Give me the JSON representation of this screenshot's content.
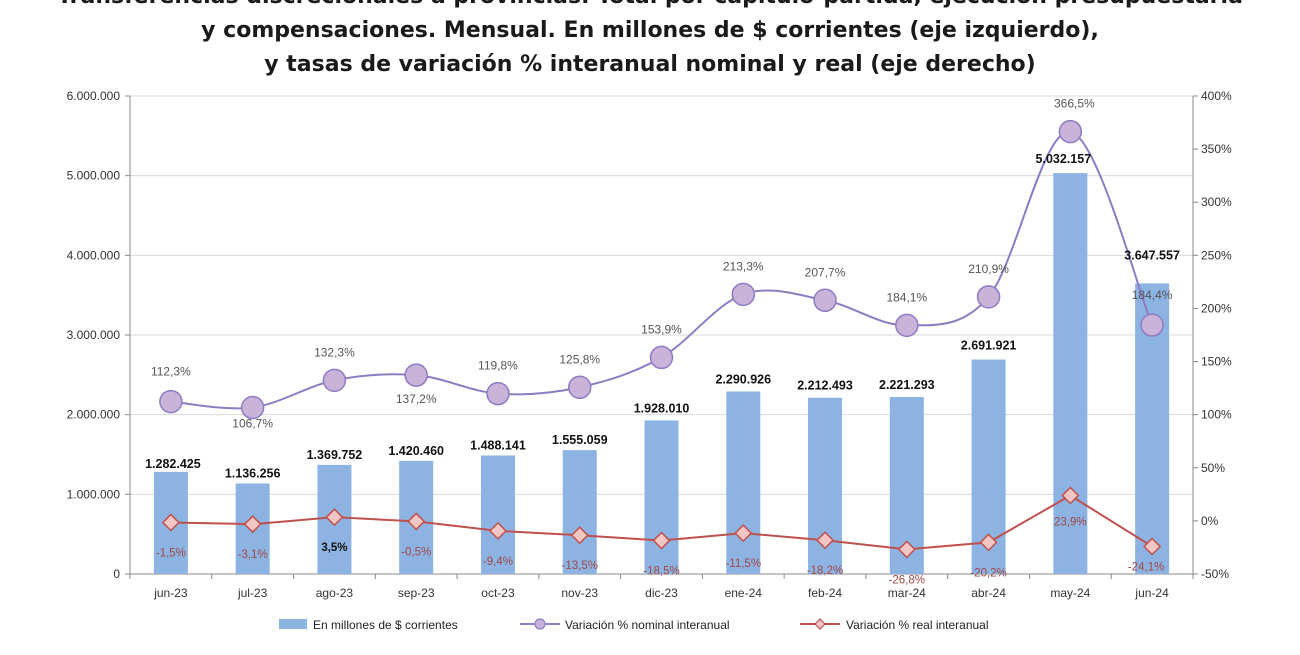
{
  "title_lines": [
    "Transferencias discrecionales a provincias. Total por capítulo-partida, ejecución presupuestaria",
    "y compensaciones. Mensual. En millones de $ corrientes (eje izquierdo),",
    "y tasas de variación % interanual nominal y real (eje derecho)"
  ],
  "colors": {
    "bar": "#8db3e2",
    "nominal_line": "#8e7cc3",
    "nominal_marker_fill": "#c9b3d9",
    "real_line": "#c0504d",
    "real_marker_fill": "#f2c6c4",
    "grid": "#d9d9d9"
  },
  "chart_data": {
    "type": "bar",
    "categories": [
      "jun-23",
      "jul-23",
      "ago-23",
      "sep-23",
      "oct-23",
      "nov-23",
      "dic-23",
      "ene-24",
      "feb-24",
      "mar-24",
      "abr-24",
      "may-24",
      "jun-24"
    ],
    "left_axis": {
      "range": [
        0,
        6000000
      ],
      "ticks": [
        0,
        1000000,
        2000000,
        3000000,
        4000000,
        5000000,
        6000000
      ],
      "tick_labels": [
        "0",
        "1.000.000",
        "2.000.000",
        "3.000.000",
        "4.000.000",
        "5.000.000",
        "6.000.000"
      ]
    },
    "right_axis": {
      "range": [
        -50,
        400
      ],
      "ticks": [
        -50,
        0,
        50,
        100,
        150,
        200,
        250,
        300,
        350,
        400
      ],
      "tick_labels": [
        "-50%",
        "0%",
        "50%",
        "100%",
        "150%",
        "200%",
        "250%",
        "300%",
        "350%",
        "400%"
      ]
    },
    "series": [
      {
        "name": "En millones de $ corrientes",
        "type": "bar",
        "axis": "left",
        "values": [
          1282425,
          1136256,
          1369752,
          1420460,
          1488141,
          1555059,
          1928010,
          2290926,
          2212493,
          2221293,
          2691921,
          5032157,
          3647557
        ],
        "labels": [
          "1.282.425",
          "1.136.256",
          "1.369.752",
          "1.420.460",
          "1.488.141",
          "1.555.059",
          "1.928.010",
          "2.290.926",
          "2.212.493",
          "2.221.293",
          "2.691.921",
          "5.032.157",
          "3.647.557"
        ]
      },
      {
        "name": "Variación % nominal interanual",
        "type": "line",
        "axis": "right",
        "values": [
          112.3,
          106.7,
          132.3,
          137.2,
          119.8,
          125.8,
          153.9,
          213.3,
          207.7,
          184.1,
          210.9,
          366.5,
          184.4
        ],
        "labels": [
          "112,3%",
          "106,7%",
          "132,3%",
          "137,2%",
          "119,8%",
          "125,8%",
          "153,9%",
          "213,3%",
          "207,7%",
          "184,1%",
          "210,9%",
          "366,5%",
          "184,4%"
        ]
      },
      {
        "name": "Variación % real interanual",
        "type": "line",
        "axis": "right",
        "values": [
          -1.5,
          -3.1,
          3.5,
          -0.5,
          -9.4,
          -13.5,
          -18.5,
          -11.5,
          -18.2,
          -26.8,
          -20.2,
          23.9,
          -24.1
        ],
        "labels": [
          "-1,5%",
          "-3,1%",
          "3,5%",
          "-0,5%",
          "-9,4%",
          "-13,5%",
          "-18,5%",
          "-11,5%",
          "-18,2%",
          "-26,8%",
          "-20,2%",
          "23,9%",
          "-24,1%"
        ]
      }
    ],
    "legend": [
      "En millones de $ corrientes",
      "Variación % nominal interanual",
      "Variación % real interanual"
    ],
    "legend_position": "bottom",
    "grid": true
  }
}
